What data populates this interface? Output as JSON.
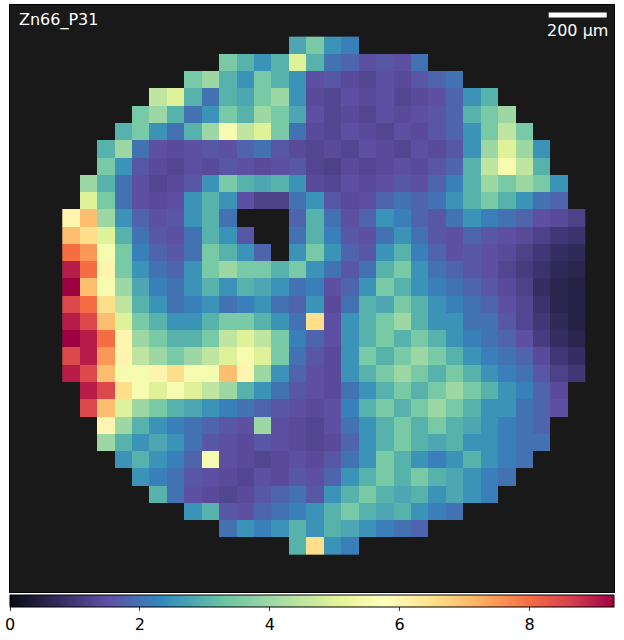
{
  "chart_data": {
    "type": "heatmap",
    "title": "Zn66_P31",
    "tick_labels": false,
    "xlim": [
      0,
      2080
    ],
    "ylim": [
      0,
      2040
    ],
    "scale_bar": {
      "length": 200,
      "label": "200 µm"
    },
    "colorbar": {
      "range": [
        0,
        9.3
      ],
      "ticks": [
        0,
        2,
        4,
        6,
        8
      ]
    },
    "x": [
      210,
      270,
      330,
      390,
      450,
      510,
      570,
      630,
      690,
      750,
      810,
      870,
      930,
      990,
      1050,
      1110,
      1170,
      1230,
      1290,
      1350,
      1410,
      1470,
      1530,
      1590,
      1650,
      1710,
      1770,
      1830,
      1890,
      1950
    ],
    "y": [
      140,
      200,
      260,
      320,
      380,
      440,
      500,
      560,
      620,
      680,
      740,
      800,
      860,
      920,
      980,
      1040,
      1100,
      1160,
      1220,
      1280,
      1340,
      1400,
      1460,
      1520,
      1580,
      1640,
      1700,
      1760,
      1820,
      1880
    ],
    "z": [
      [
        null,
        null,
        null,
        null,
        null,
        null,
        null,
        null,
        null,
        null,
        null,
        null,
        null,
        2.8,
        3.5,
        2.5,
        2.2,
        null,
        null,
        null,
        null,
        null,
        null,
        null,
        null,
        null,
        null,
        null,
        null,
        null
      ],
      [
        null,
        null,
        null,
        null,
        null,
        null,
        null,
        null,
        null,
        3.5,
        3,
        2.5,
        3,
        5,
        3,
        2,
        1.8,
        1.5,
        1.6,
        1.5,
        2,
        null,
        null,
        null,
        null,
        null,
        null,
        null,
        null,
        null
      ],
      [
        null,
        null,
        null,
        null,
        null,
        null,
        null,
        3.5,
        4,
        3,
        2.5,
        3.5,
        3,
        2.5,
        1.5,
        1.6,
        1.4,
        1.3,
        1.5,
        1.4,
        1.6,
        1.8,
        2,
        null,
        null,
        null,
        null,
        null,
        null,
        null
      ],
      [
        null,
        null,
        null,
        null,
        null,
        4.5,
        5,
        3,
        2,
        3,
        2.8,
        3.5,
        4,
        2.5,
        1.4,
        1.3,
        1.5,
        1.4,
        1.5,
        1.3,
        1.4,
        1.5,
        1.8,
        2.5,
        3,
        null,
        null,
        null,
        null,
        null
      ],
      [
        null,
        null,
        null,
        null,
        3.5,
        4,
        3,
        2,
        2.5,
        3.5,
        3,
        4,
        3.5,
        2.8,
        1.5,
        1.3,
        1.4,
        1.3,
        1.5,
        1.4,
        1.5,
        1.6,
        1.8,
        3,
        3.5,
        4,
        null,
        null,
        null,
        null
      ],
      [
        null,
        null,
        null,
        3,
        3.5,
        2.5,
        2,
        3,
        4,
        5.5,
        4.5,
        5,
        3.5,
        2,
        1.4,
        1.3,
        1.5,
        1.4,
        1.3,
        1.5,
        1.4,
        1.6,
        1.8,
        2.5,
        3.5,
        4.5,
        3.5,
        null,
        null,
        null
      ],
      [
        null,
        null,
        3,
        4,
        2,
        1.5,
        1.4,
        1.5,
        1.6,
        1.5,
        1.8,
        2,
        1.6,
        1.4,
        1.3,
        1.4,
        1.3,
        1.5,
        1.4,
        1.3,
        1.5,
        1.4,
        1.6,
        2.5,
        4,
        5,
        4,
        2.5,
        null,
        null
      ],
      [
        null,
        null,
        3.5,
        2.5,
        1.6,
        1.4,
        1.3,
        1.5,
        1.4,
        1.6,
        1.5,
        1.4,
        1.5,
        1.6,
        1.3,
        1.2,
        1.4,
        1.3,
        1.4,
        1.5,
        1.4,
        1.6,
        1.8,
        3,
        4.5,
        5.5,
        4.5,
        3,
        null,
        null
      ],
      [
        null,
        4,
        3,
        2,
        1.5,
        1.3,
        1.4,
        1.6,
        2.5,
        3.5,
        3,
        2.8,
        3,
        2.5,
        1.4,
        1.3,
        1.5,
        1.4,
        1.5,
        1.6,
        1.5,
        1.8,
        2.2,
        3,
        4,
        3.5,
        4,
        3.5,
        2.5,
        null
      ],
      [
        null,
        5,
        3.5,
        2,
        1.5,
        1.4,
        1.5,
        2.5,
        3,
        2.5,
        1.5,
        1.2,
        1.2,
        2,
        2.5,
        1.6,
        1.4,
        1.5,
        1.8,
        2,
        1.8,
        2,
        2.5,
        3,
        3.5,
        3,
        2.5,
        2,
        1.8,
        null
      ],
      [
        6,
        7,
        4,
        2.5,
        1.8,
        1.5,
        1.6,
        2.5,
        3,
        2,
        null,
        null,
        null,
        1.8,
        3,
        2,
        1.5,
        1.8,
        2.5,
        2.2,
        1.8,
        1.6,
        2,
        2.5,
        2.2,
        2,
        1.8,
        1.5,
        1.4,
        1.2
      ],
      [
        7,
        6.5,
        5,
        3,
        2,
        1.6,
        1.5,
        2,
        3,
        2.5,
        1.6,
        null,
        null,
        2,
        3,
        2.2,
        1.6,
        1.5,
        2,
        2.5,
        2,
        1.6,
        1.5,
        1.8,
        1.6,
        1.5,
        1.4,
        1.2,
        1,
        0.9
      ],
      [
        8,
        7.5,
        5.5,
        3.5,
        2.2,
        1.8,
        1.6,
        2,
        3.5,
        3,
        2.5,
        1.8,
        null,
        2.5,
        3.5,
        2.5,
        1.8,
        1.6,
        2.5,
        3,
        2.2,
        1.8,
        1.5,
        1.6,
        1.5,
        1.4,
        1.2,
        1,
        0.8,
        0.7
      ],
      [
        9,
        8,
        6,
        3.5,
        2.5,
        2,
        1.8,
        2.5,
        3.5,
        4,
        3.5,
        3.5,
        3,
        3.5,
        2.5,
        2,
        1.6,
        2,
        3,
        3.5,
        2.5,
        2,
        1.8,
        1.6,
        1.5,
        1.3,
        1.1,
        0.9,
        0.7,
        0.6
      ],
      [
        9.3,
        7,
        5.5,
        4,
        2.8,
        2.2,
        2,
        2.5,
        3,
        2.5,
        3,
        2.8,
        2.5,
        2,
        2.2,
        1.5,
        1.8,
        2.5,
        3.5,
        3,
        2.5,
        2.2,
        2,
        1.8,
        1.6,
        1.4,
        1.2,
        0.8,
        0.6,
        0.5
      ],
      [
        8.5,
        8,
        6.5,
        4.5,
        3,
        2.5,
        2,
        2.2,
        2.5,
        2,
        2.2,
        2.5,
        2,
        1.8,
        2.5,
        1.4,
        2,
        3,
        2.8,
        3.5,
        3,
        2.5,
        2.2,
        2,
        1.8,
        1.5,
        1.3,
        0.9,
        0.6,
        0.5
      ],
      [
        9,
        8.5,
        7,
        5,
        3.5,
        3,
        2.5,
        2.5,
        3,
        3.5,
        3.5,
        3,
        2.5,
        2,
        6.5,
        1.5,
        2.5,
        3,
        3.5,
        4,
        3,
        2.5,
        2.5,
        2,
        2,
        1.6,
        1.3,
        1,
        0.7,
        0.5
      ],
      [
        9.3,
        9,
        8,
        6,
        4,
        3.5,
        3,
        3,
        3.5,
        4.5,
        5,
        4.5,
        3.5,
        2.2,
        1.8,
        1.5,
        2.5,
        3,
        3.5,
        3,
        3.5,
        3,
        2.5,
        2.2,
        2,
        1.8,
        1.5,
        1.1,
        0.8,
        0.6
      ],
      [
        8.5,
        9,
        7.5,
        6,
        4.5,
        4,
        3.5,
        4,
        4.5,
        5,
        5.5,
        5,
        3.5,
        2,
        1.6,
        1.4,
        2.5,
        3.5,
        3,
        3.5,
        4,
        3.5,
        3,
        2.5,
        2.2,
        2,
        1.8,
        1.4,
        1,
        0.8
      ],
      [
        9,
        8.5,
        7,
        5.5,
        5.5,
        6,
        6.5,
        5.5,
        5.5,
        7,
        6,
        4,
        2.5,
        1.8,
        1.5,
        1.4,
        2.5,
        3,
        3.5,
        4,
        3.5,
        3,
        3.5,
        3,
        2.5,
        2.2,
        2,
        1.6,
        1.2,
        1
      ],
      [
        null,
        9,
        8.5,
        6.5,
        5.5,
        5,
        5.5,
        5,
        4.5,
        4,
        3,
        2.5,
        2,
        1.6,
        1.5,
        1.4,
        2,
        2.5,
        3,
        3.5,
        3,
        3.5,
        4,
        3.5,
        3,
        2.5,
        2.2,
        1.8,
        1.4,
        null
      ],
      [
        null,
        8.5,
        7,
        5,
        4,
        3.5,
        3,
        2.8,
        2.5,
        2.2,
        2,
        1.8,
        1.6,
        1.5,
        1.4,
        1.5,
        2.2,
        3,
        3.5,
        3,
        3.5,
        4,
        3.5,
        3,
        2.5,
        2.5,
        2,
        1.8,
        1.5,
        null
      ],
      [
        null,
        null,
        6,
        4,
        3,
        2.5,
        2.2,
        2,
        1.8,
        1.6,
        1.5,
        4,
        1.5,
        1.4,
        1.3,
        1.5,
        2,
        2.5,
        3,
        3.5,
        3,
        3.5,
        3,
        2.8,
        2.5,
        2.2,
        2,
        1.8,
        null,
        null
      ],
      [
        null,
        null,
        4,
        3,
        2.5,
        2.8,
        2.5,
        2,
        1.6,
        1.5,
        1.4,
        1.6,
        1.5,
        1.4,
        1.3,
        1.4,
        1.8,
        2.5,
        3,
        3.5,
        3,
        2.8,
        3,
        2.5,
        2.5,
        2.2,
        2,
        2,
        null,
        null
      ],
      [
        null,
        null,
        null,
        2.5,
        3,
        2.5,
        2.2,
        1.8,
        5.5,
        1.5,
        1.4,
        1.3,
        1.4,
        1.5,
        1.4,
        1.6,
        2,
        2.5,
        3.5,
        3,
        2.5,
        2.2,
        2.5,
        3,
        2.5,
        2.2,
        2,
        null,
        null,
        null
      ],
      [
        null,
        null,
        null,
        null,
        2.5,
        2.2,
        2,
        1.6,
        1.5,
        1.4,
        1.3,
        1.5,
        1.4,
        1.6,
        1.5,
        1.8,
        2.5,
        3,
        3.5,
        3,
        3.5,
        3,
        2.8,
        2.5,
        2.2,
        2,
        null,
        null,
        null,
        null
      ],
      [
        null,
        null,
        null,
        null,
        null,
        3,
        2,
        1.5,
        1.4,
        1.3,
        1.4,
        1.6,
        1.8,
        2,
        1.6,
        2.5,
        3,
        3.5,
        3,
        2.8,
        3,
        2.5,
        2.8,
        2.5,
        2.2,
        null,
        null,
        null,
        null,
        null
      ],
      [
        null,
        null,
        null,
        null,
        null,
        null,
        null,
        2.5,
        3,
        1.6,
        1.5,
        1.8,
        2,
        2.2,
        2.5,
        3,
        3.5,
        3,
        2.8,
        3,
        2.5,
        2.2,
        2,
        null,
        null,
        null,
        null,
        null,
        null,
        null
      ],
      [
        null,
        null,
        null,
        null,
        null,
        null,
        null,
        null,
        null,
        2,
        2.5,
        2.2,
        2.5,
        3,
        2.5,
        3,
        2.8,
        2.5,
        2.2,
        2,
        1.8,
        null,
        null,
        null,
        null,
        null,
        null,
        null,
        null,
        null
      ],
      [
        null,
        null,
        null,
        null,
        null,
        null,
        null,
        null,
        null,
        null,
        null,
        null,
        null,
        3,
        6.5,
        2.5,
        2.2,
        null,
        null,
        null,
        null,
        null,
        null,
        null,
        null,
        null,
        null,
        null,
        null,
        null
      ]
    ]
  }
}
